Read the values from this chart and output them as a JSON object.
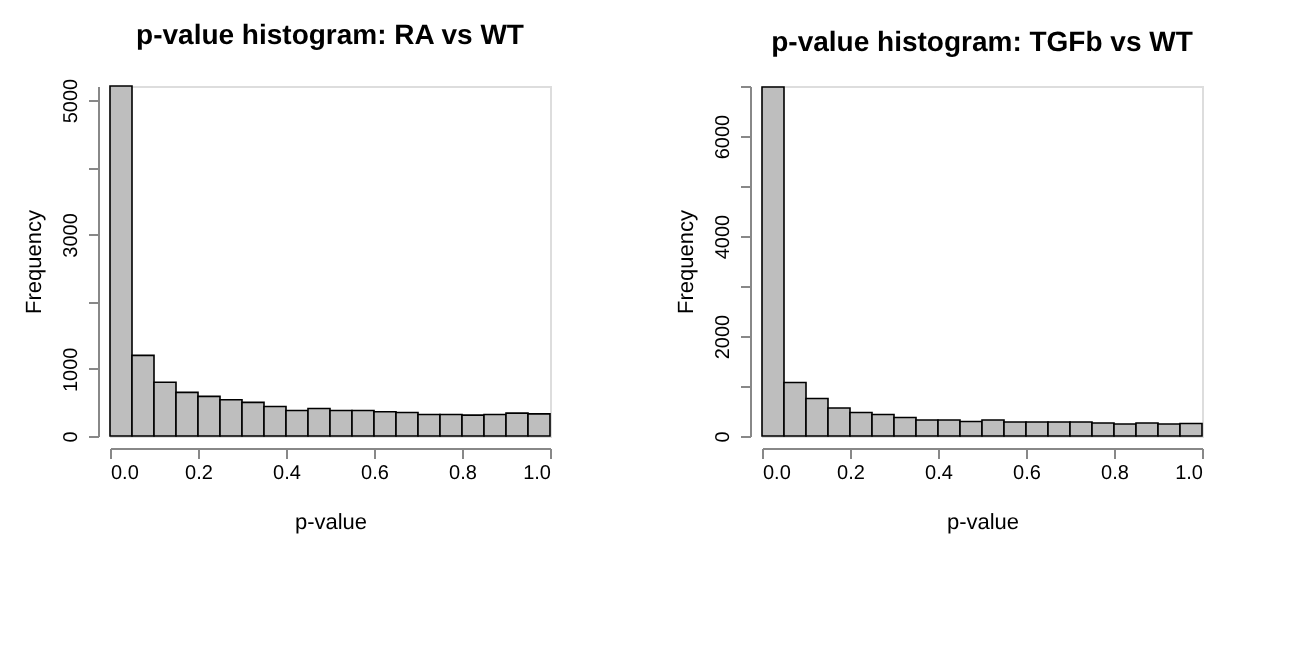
{
  "chart_data": [
    {
      "type": "histogram",
      "title": "p-value histogram: RA vs WT",
      "xlabel": "p-value",
      "ylabel": "Frequency",
      "color": "#bebebe",
      "grid": false,
      "bins": [
        0,
        0.05,
        0.1,
        0.15,
        0.2,
        0.25,
        0.3,
        0.35,
        0.4,
        0.45,
        0.5,
        0.55,
        0.6,
        0.65,
        0.7,
        0.75,
        0.8,
        0.85,
        0.9,
        0.95,
        1.0
      ],
      "values": [
        5210,
        1200,
        800,
        650,
        590,
        540,
        500,
        440,
        380,
        410,
        380,
        380,
        360,
        350,
        320,
        320,
        310,
        320,
        340,
        330
      ],
      "xlim": [
        0,
        1
      ],
      "ylim": [
        0,
        5210
      ],
      "xticks": [
        {
          "value": 0,
          "label": "0.0"
        },
        {
          "value": 0.2,
          "label": "0.2"
        },
        {
          "value": 0.4,
          "label": "0.4"
        },
        {
          "value": 0.6,
          "label": "0.6"
        },
        {
          "value": 0.8,
          "label": "0.8"
        },
        {
          "value": 1,
          "label": "1.0"
        }
      ],
      "yticks": [
        0,
        1000,
        {
          "value": 2000,
          "label": null
        },
        3000,
        {
          "value": 4000,
          "label": null
        },
        5000
      ]
    },
    {
      "type": "histogram",
      "title": "p-value histogram: TGFb vs WT",
      "xlabel": "p-value",
      "ylabel": "Frequency",
      "color": "#bebebe",
      "grid": false,
      "bins": [
        0,
        0.05,
        0.1,
        0.15,
        0.2,
        0.25,
        0.3,
        0.35,
        0.4,
        0.45,
        0.5,
        0.55,
        0.6,
        0.65,
        0.7,
        0.75,
        0.8,
        0.85,
        0.9,
        0.95,
        1.0
      ],
      "values": [
        6980,
        1070,
        750,
        560,
        470,
        430,
        370,
        320,
        320,
        290,
        320,
        280,
        280,
        280,
        280,
        260,
        240,
        260,
        240,
        250
      ],
      "xlim": [
        0,
        1
      ],
      "ylim": [
        0,
        7000
      ],
      "xticks": [
        {
          "value": 0,
          "label": "0.0"
        },
        {
          "value": 0.2,
          "label": "0.2"
        },
        {
          "value": 0.4,
          "label": "0.4"
        },
        {
          "value": 0.6,
          "label": "0.6"
        },
        {
          "value": 0.8,
          "label": "0.8"
        },
        {
          "value": 1,
          "label": "1.0"
        }
      ],
      "yticks": [
        0,
        {
          "value": 1000,
          "label": null
        },
        2000,
        {
          "value": 3000,
          "label": null
        },
        4000,
        {
          "value": 5000,
          "label": null
        },
        6000,
        {
          "value": 7000,
          "label": null
        }
      ]
    }
  ]
}
